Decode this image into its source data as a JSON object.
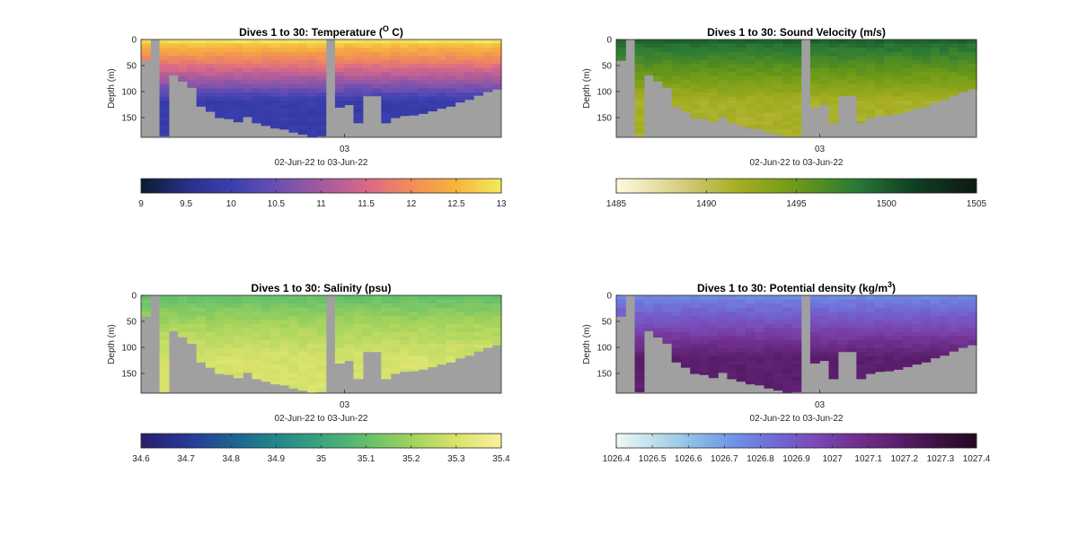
{
  "chart_data": [
    {
      "type": "heatmap",
      "title_prefix": "Dives 1 to 30: Temperature (",
      "title_sup": "O",
      "title_suffix": " C)",
      "variable": "temperature",
      "ylabel": "Depth (m)",
      "yticks": [
        0,
        50,
        100,
        150
      ],
      "ylim": [
        0,
        188
      ],
      "xtick_label": "03",
      "xlabel": "02-Jun-22 to 03-Jun-22",
      "colorbar": {
        "range": [
          9,
          13
        ],
        "ticks": [
          "9",
          "9.5",
          "10",
          "10.5",
          "11",
          "11.5",
          "12",
          "12.5",
          "13"
        ],
        "colors": [
          "#0c1d33",
          "#2a2f8a",
          "#3b3fb0",
          "#6a4fb3",
          "#a35a9f",
          "#d8688a",
          "#f28b5a",
          "#f7b23c",
          "#f0e85a"
        ]
      },
      "value_ranges": {
        "surface": 12.9,
        "mid": 11.4,
        "deep": 9.9
      }
    },
    {
      "type": "heatmap",
      "title_prefix": "Dives 1 to 30: Sound Velocity (m/s)",
      "title_sup": "",
      "title_suffix": "",
      "variable": "sound_velocity",
      "ylabel": "Depth (m)",
      "yticks": [
        0,
        50,
        100,
        150
      ],
      "ylim": [
        0,
        188
      ],
      "xtick_label": "03",
      "xlabel": "02-Jun-22 to 03-Jun-22",
      "colorbar": {
        "range": [
          1485,
          1505
        ],
        "ticks": [
          "1485",
          "1490",
          "1495",
          "1500",
          "1505"
        ],
        "colors": [
          "#fdf9dc",
          "#d8cf86",
          "#a7ae22",
          "#6c9a17",
          "#2a7a35",
          "#0f3e22",
          "#0e1a12"
        ]
      },
      "value_ranges": {
        "surface": 1499.5,
        "mid": 1495.5,
        "deep": 1491.5
      }
    },
    {
      "type": "heatmap",
      "title_prefix": "Dives 1 to 30: Salinity (psu)",
      "title_sup": "",
      "title_suffix": "",
      "variable": "salinity",
      "ylabel": "Depth (m)",
      "yticks": [
        0,
        50,
        100,
        150
      ],
      "ylim": [
        0,
        188
      ],
      "xtick_label": "03",
      "xlabel": "02-Jun-22 to 03-Jun-22",
      "colorbar": {
        "range": [
          34.6,
          35.4
        ],
        "ticks": [
          "34.6",
          "34.7",
          "34.8",
          "34.9",
          "35",
          "35.1",
          "35.2",
          "35.3",
          "35.4"
        ],
        "colors": [
          "#2a1f6e",
          "#263a98",
          "#1d6190",
          "#23878a",
          "#3aa37f",
          "#62bf6c",
          "#9fd25c",
          "#d7e26a",
          "#f7ef9a"
        ]
      },
      "value_ranges": {
        "surface": 35.1,
        "mid": 35.22,
        "deep": 35.3
      }
    },
    {
      "type": "heatmap",
      "title_prefix": "Dives 1 to 30: Potential density (kg/m",
      "title_sup": "3",
      "title_suffix": ")",
      "variable": "potential_density",
      "ylabel": "Depth (m)",
      "yticks": [
        0,
        50,
        100,
        150
      ],
      "ylim": [
        0,
        188
      ],
      "xtick_label": "03",
      "xlabel": "02-Jun-22 to 03-Jun-22",
      "colorbar": {
        "range": [
          1026.4,
          1027.4
        ],
        "ticks": [
          "1026.4",
          "1026.5",
          "1026.6",
          "1026.7",
          "1026.8",
          "1026.9",
          "1027",
          "1027.1",
          "1027.2",
          "1027.3",
          "1027.4"
        ],
        "colors": [
          "#eef6f6",
          "#b9dcea",
          "#86b9e8",
          "#6f8fe6",
          "#7168d4",
          "#7a49b5",
          "#71308f",
          "#5c1f6f",
          "#3f1245",
          "#220a23"
        ]
      },
      "value_ranges": {
        "surface": 1026.75,
        "mid": 1026.95,
        "deep": 1027.18
      }
    }
  ],
  "profile_bottoms_m": [
    40,
    0,
    185,
    68,
    80,
    92,
    128,
    138,
    150,
    152,
    158,
    148,
    160,
    165,
    170,
    172,
    178,
    182,
    186,
    185,
    0,
    130,
    125,
    160,
    108,
    108,
    160,
    150,
    146,
    145,
    142,
    137,
    132,
    128,
    120,
    115,
    107,
    100,
    95
  ],
  "colors": {
    "land": "#a0a0a0",
    "axis": "#262626"
  }
}
